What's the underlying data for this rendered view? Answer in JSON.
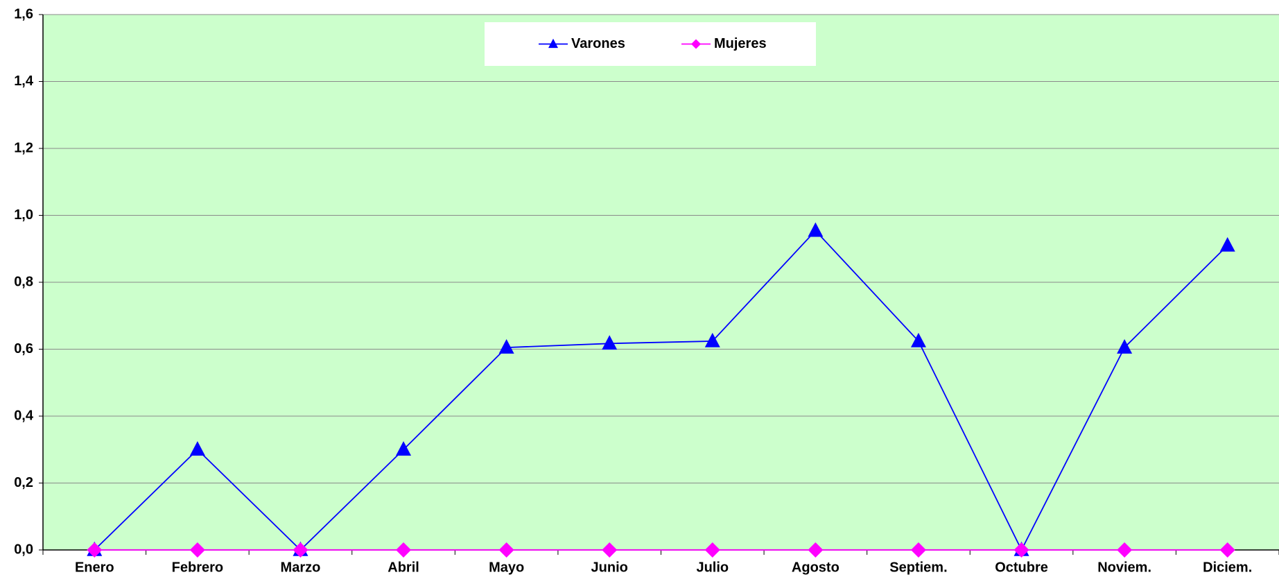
{
  "chart_data": {
    "type": "line",
    "categories": [
      "Enero",
      "Febrero",
      "Marzo",
      "Abril",
      "Mayo",
      "Junio",
      "Julio",
      "Agosto",
      "Septiem.",
      "Octubre",
      "Noviem.",
      "Diciem."
    ],
    "series": [
      {
        "name": "Varones",
        "color": "#0000ff",
        "marker": "triangle",
        "values": [
          0,
          0.3,
          0,
          0.3,
          0.605,
          0.617,
          0.624,
          0.954,
          0.624,
          0,
          0.605,
          0.91
        ]
      },
      {
        "name": "Mujeres",
        "color": "#ff00ff",
        "marker": "diamond",
        "values": [
          0,
          0,
          0,
          0,
          0,
          0,
          0,
          0,
          0,
          0,
          0,
          0
        ]
      }
    ],
    "ylim": [
      0,
      1.6
    ],
    "yticks": [
      {
        "value": 0,
        "label": "0,0"
      },
      {
        "value": 0.2,
        "label": "0,2"
      },
      {
        "value": 0.4,
        "label": "0,4"
      },
      {
        "value": 0.6,
        "label": "0,6"
      },
      {
        "value": 0.8,
        "label": "0,8"
      },
      {
        "value": 1.0,
        "label": "1,0"
      },
      {
        "value": 1.2,
        "label": "1,2"
      },
      {
        "value": 1.4,
        "label": "1,4"
      },
      {
        "value": 1.6,
        "label": "1,6"
      }
    ],
    "grid": true,
    "legend": "top"
  }
}
